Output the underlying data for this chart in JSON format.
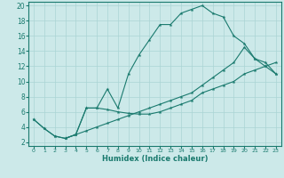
{
  "xlabel": "Humidex (Indice chaleur)",
  "xlim": [
    -0.5,
    23.5
  ],
  "ylim": [
    1.5,
    20.5
  ],
  "yticks": [
    2,
    4,
    6,
    8,
    10,
    12,
    14,
    16,
    18,
    20
  ],
  "xticks": [
    0,
    1,
    2,
    3,
    4,
    5,
    6,
    7,
    8,
    9,
    10,
    11,
    12,
    13,
    14,
    15,
    16,
    17,
    18,
    19,
    20,
    21,
    22,
    23
  ],
  "background_color": "#cce9e9",
  "grid_color": "#aad4d4",
  "line_color": "#1a7a6e",
  "line1_x": [
    0,
    1,
    2,
    3,
    4,
    5,
    6,
    7,
    8,
    9,
    10,
    11,
    12,
    13,
    14,
    15,
    16,
    17,
    18,
    19,
    20,
    21,
    22,
    23
  ],
  "line1_y": [
    5,
    3.8,
    2.8,
    2.5,
    3,
    6.5,
    6.5,
    9,
    6.5,
    11,
    13.5,
    15.5,
    17.5,
    17.5,
    19,
    19.5,
    20,
    19,
    18.5,
    16,
    15,
    13,
    12,
    11
  ],
  "line2_x": [
    0,
    1,
    2,
    3,
    4,
    5,
    6,
    7,
    8,
    9,
    10,
    11,
    12,
    13,
    14,
    15,
    16,
    17,
    18,
    19,
    20,
    21,
    22,
    23
  ],
  "line2_y": [
    5,
    3.8,
    2.8,
    2.5,
    3,
    6.5,
    6.5,
    6.3,
    6,
    5.8,
    5.7,
    5.7,
    6,
    6.5,
    7,
    7.5,
    8.5,
    9,
    9.5,
    10,
    11,
    11.5,
    12,
    12.5
  ],
  "line3_x": [
    3,
    4,
    5,
    6,
    7,
    8,
    9,
    10,
    11,
    12,
    13,
    14,
    15,
    16,
    17,
    18,
    19,
    20,
    21,
    22,
    23
  ],
  "line3_y": [
    2.5,
    3,
    3.5,
    4,
    4.5,
    5,
    5.5,
    6,
    6.5,
    7,
    7.5,
    8,
    8.5,
    9.5,
    10.5,
    11.5,
    12.5,
    14.5,
    13,
    12.5,
    11
  ]
}
